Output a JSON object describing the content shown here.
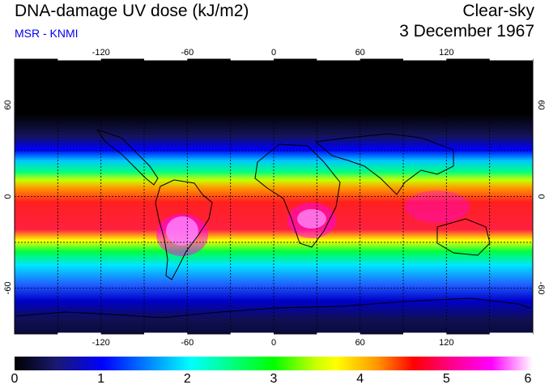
{
  "header": {
    "title": "DNA-damage UV dose (kJ/m2)",
    "credit": "MSR - KNMI",
    "sky_condition": "Clear-sky",
    "date": "3 December 1967"
  },
  "map": {
    "lon_ticks": [
      "-120",
      "-60",
      "0",
      "60",
      "120"
    ],
    "lat_ticks": [
      "60",
      "0",
      "-60"
    ],
    "lon_values": [
      -120,
      -60,
      0,
      60,
      120
    ],
    "lat_values": [
      60,
      0,
      -60
    ],
    "lon_range": [
      -180,
      180
    ],
    "lat_range": [
      -90,
      90
    ]
  },
  "colorbar": {
    "labels": [
      "0",
      "1",
      "2",
      "3",
      "4",
      "5",
      "6"
    ],
    "min": 0,
    "max": 6,
    "stops": [
      "#000000",
      "#1a1a70",
      "#0000ff",
      "#00b4ff",
      "#00ffff",
      "#00ff80",
      "#00ff00",
      "#c8ff00",
      "#ffff00",
      "#ff9600",
      "#ff0000",
      "#ff0096",
      "#ff00ff",
      "#ffffff"
    ]
  }
}
